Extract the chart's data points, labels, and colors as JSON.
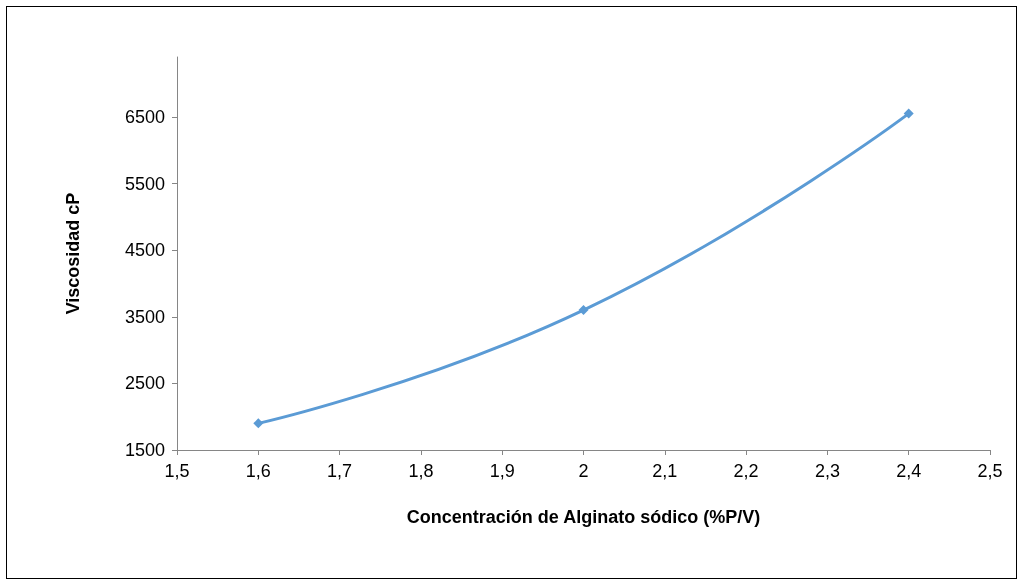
{
  "chart_data": {
    "type": "line",
    "xlabel": "Concentración de Alginato sódico (%P/V)",
    "ylabel": "Viscosidad cP",
    "x": [
      1.6,
      2,
      2.4
    ],
    "series": [
      {
        "color": "#5b9bd5",
        "values": [
          1900,
          3600,
          6550
        ]
      }
    ],
    "xlim": [
      1.5,
      2.5
    ],
    "xticks": [
      {
        "value": 1.5,
        "label": "1,5"
      },
      {
        "value": 1.6,
        "label": "1,6"
      },
      {
        "value": 1.7,
        "label": "1,7"
      },
      {
        "value": 1.8,
        "label": "1,8"
      },
      {
        "value": 1.9,
        "label": "1,9"
      },
      {
        "value": 2,
        "label": "2"
      },
      {
        "value": 2.1,
        "label": "2,1"
      },
      {
        "value": 2.2,
        "label": "2,2"
      },
      {
        "value": 2.3,
        "label": "2,3"
      },
      {
        "value": 2.4,
        "label": "2,4"
      },
      {
        "value": 2.5,
        "label": "2,5"
      }
    ],
    "ylim": [
      1500,
      7400
    ],
    "yticks": [
      1500,
      2500,
      3500,
      4500,
      5500,
      6500
    ],
    "grid": false,
    "marker": "diamond",
    "line_style": "solid"
  }
}
